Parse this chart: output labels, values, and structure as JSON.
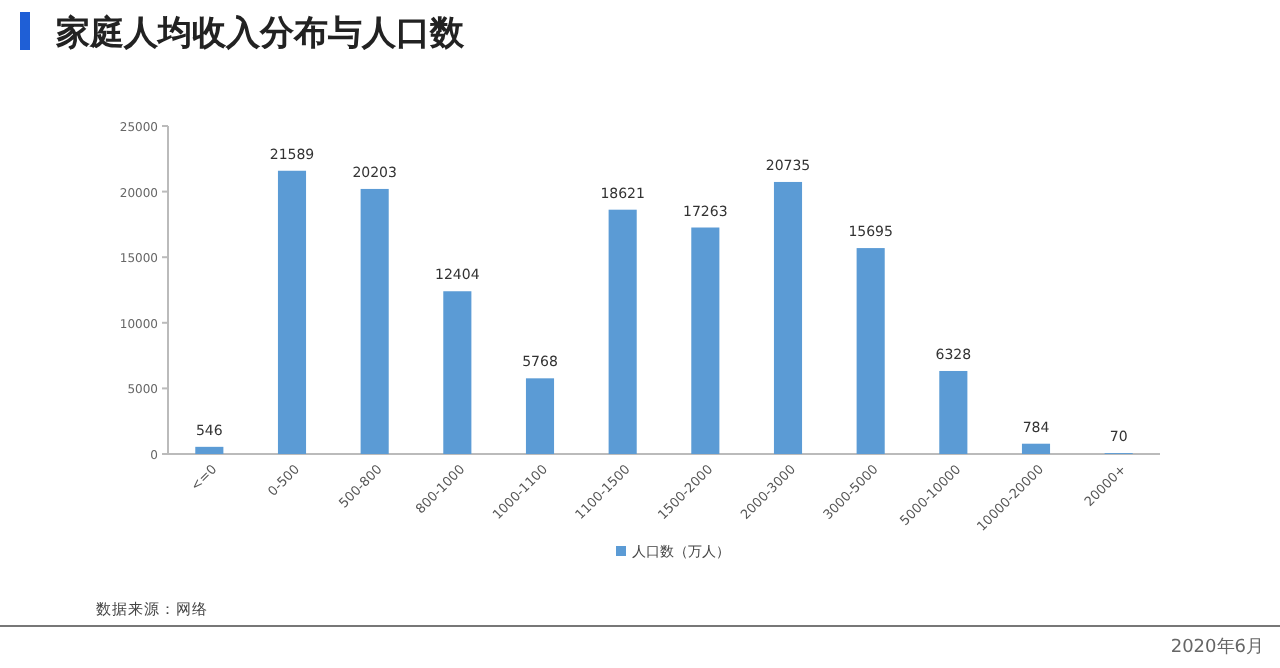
{
  "chart_data": {
    "type": "bar",
    "title": "家庭人均收入分布与人口数",
    "categories": [
      "<=0",
      "0-500",
      "500-800",
      "800-1000",
      "1000-1100",
      "1100-1500",
      "1500-2000",
      "2000-3000",
      "3000-5000",
      "5000-10000",
      "10000-20000",
      "20000+"
    ],
    "series": [
      {
        "name": "人口数（万人）",
        "color": "#5b9bd5",
        "values": [
          546,
          21589,
          20203,
          12404,
          5768,
          18621,
          17263,
          20735,
          15695,
          6328,
          784,
          70
        ]
      }
    ],
    "ylim": [
      0,
      25000
    ],
    "yticks": [
      0,
      5000,
      10000,
      15000,
      20000,
      25000
    ],
    "data_labels": true,
    "grid": false,
    "legend": "bottom",
    "annotations": [
      "数据来源：网络",
      "2020年6月"
    ]
  }
}
